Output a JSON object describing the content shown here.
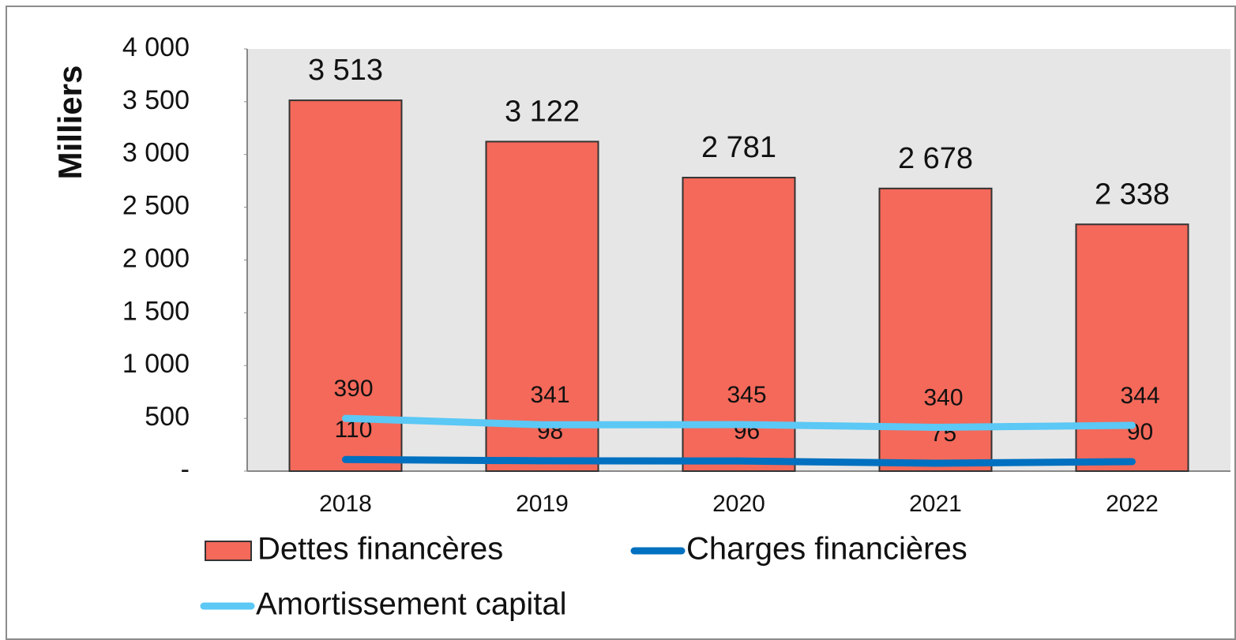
{
  "chart_data": {
    "type": "bar",
    "y_label": "Milliers",
    "categories": [
      "2018",
      "2019",
      "2020",
      "2021",
      "2022"
    ],
    "series": [
      {
        "name": "Dettes financères",
        "type": "bar",
        "color": "#f4695a",
        "values": [
          3513,
          3122,
          2781,
          2678,
          2338
        ],
        "value_labels": [
          "3 513",
          "3 122",
          "2 781",
          "2 678",
          "2 338"
        ]
      },
      {
        "name": "Charges financières",
        "type": "line",
        "color": "#0070c0",
        "values": [
          110,
          98,
          96,
          75,
          90
        ]
      },
      {
        "name": "Amortissement capital",
        "type": "line",
        "stacked": true,
        "color": "#5bc8f5",
        "values": [
          390,
          341,
          345,
          340,
          344
        ]
      }
    ],
    "ylim": [
      0,
      4000
    ],
    "yticks": [
      {
        "value": 0,
        "label": "-"
      },
      500,
      {
        "value": 1000,
        "label": "1 000"
      },
      {
        "value": 1500,
        "label": "1 500"
      },
      {
        "value": 2000,
        "label": "2 000"
      },
      {
        "value": 2500,
        "label": "2 500"
      },
      {
        "value": 3000,
        "label": "3 000"
      },
      {
        "value": 3500,
        "label": "3 500"
      },
      {
        "value": 4000,
        "label": "4 000"
      }
    ],
    "plot_background": "#e7e6e6"
  }
}
